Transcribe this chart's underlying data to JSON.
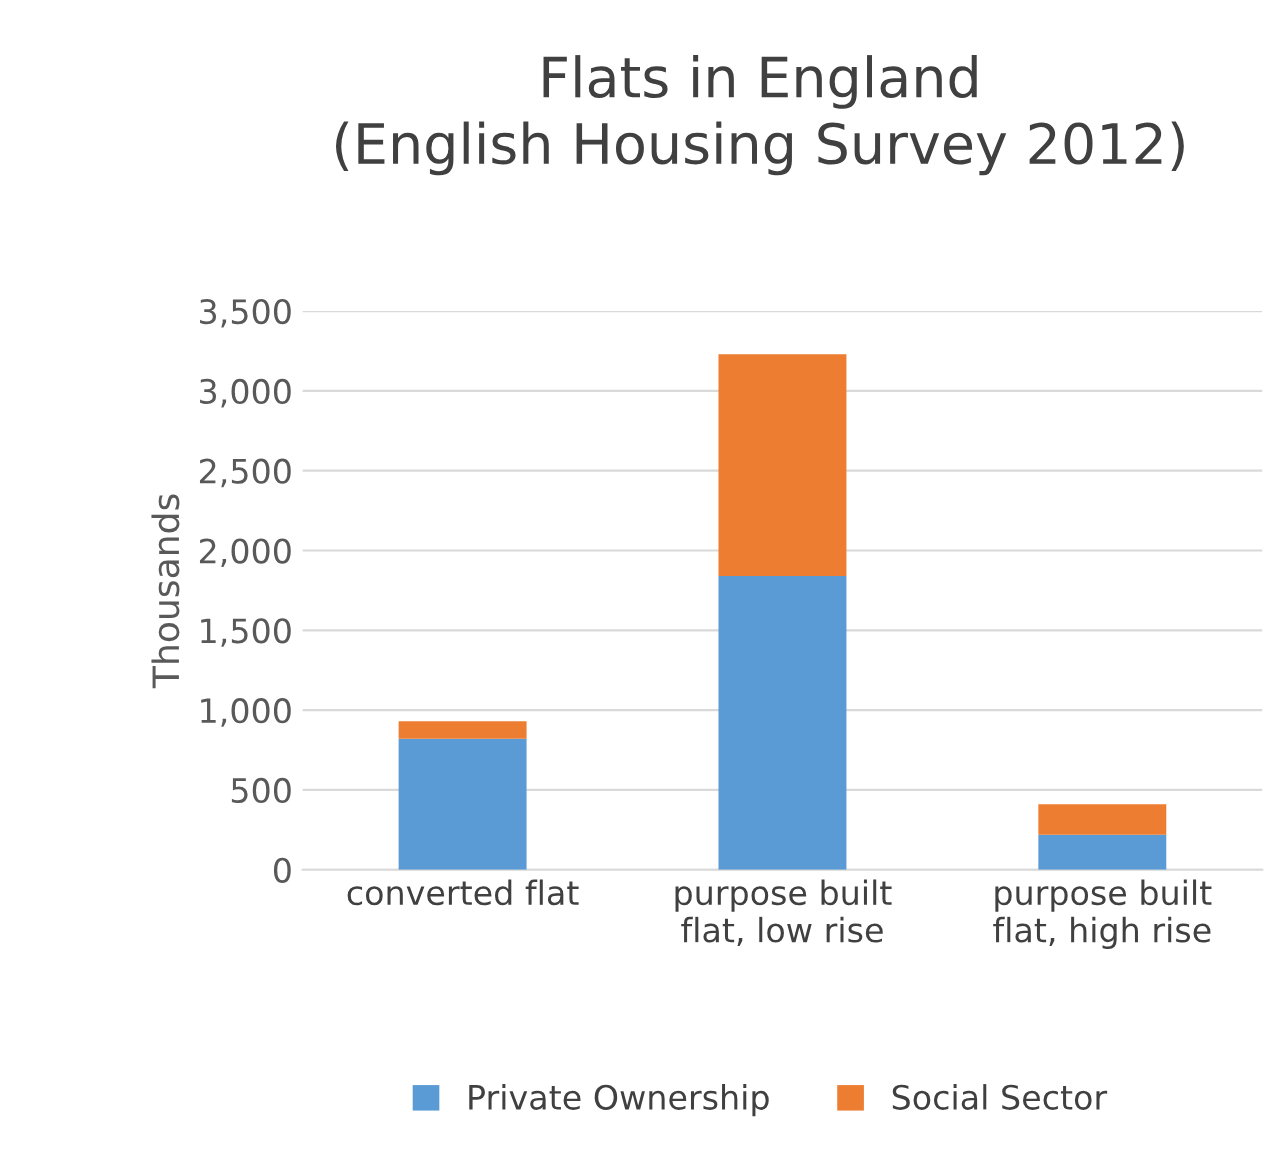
{
  "chart_data": {
    "type": "bar",
    "title": "Flats in England\n(English Housing Survey 2012)",
    "ylabel": "Thousands",
    "categories": [
      "converted flat",
      "purpose built\nflat, low rise",
      "purpose built\nflat, high rise"
    ],
    "series": [
      {
        "name": "Private Ownership",
        "color": "#5b9bd5",
        "values": [
          820,
          1840,
          220
        ]
      },
      {
        "name": "Social Sector",
        "color": "#ed7d31",
        "values": [
          110,
          1390,
          190
        ]
      }
    ],
    "stacked": true,
    "ylim": [
      0,
      3500
    ],
    "yticks": [
      {
        "value": 0,
        "label": "0"
      },
      {
        "value": 500,
        "label": "500"
      },
      {
        "value": 1000,
        "label": "1,000"
      },
      {
        "value": 1500,
        "label": "1,500"
      },
      {
        "value": 2000,
        "label": "2,000"
      },
      {
        "value": 2500,
        "label": "2,500"
      },
      {
        "value": 3000,
        "label": "3,000"
      },
      {
        "value": 3500,
        "label": "3,500"
      }
    ],
    "grid": "y",
    "legend": "bottom"
  }
}
